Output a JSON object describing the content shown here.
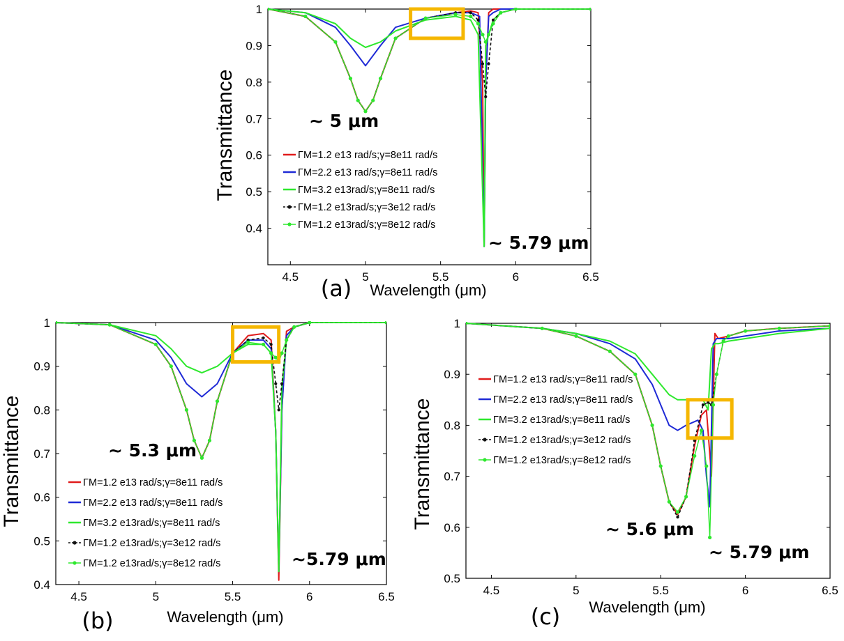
{
  "chart_data": [
    {
      "panel_label": "(a)",
      "type": "line",
      "xlabel": "Wavelength (μm)",
      "ylabel": "Transmittance",
      "xlim": [
        4.35,
        6.5
      ],
      "ylim": [
        0.3,
        1.0
      ],
      "xticks": [
        "4.5",
        "5",
        "5.5",
        "6",
        "6.5"
      ],
      "yticks": [
        "0.4",
        "0.5",
        "0.6",
        "0.7",
        "0.8",
        "0.9",
        "1"
      ],
      "annotations": [
        "~ 5 μm",
        "~ 5.79 μm"
      ],
      "highlight": {
        "x": [
          5.3,
          5.65
        ],
        "y": [
          0.92,
          1.0
        ],
        "color": "#f5b700"
      },
      "legend_position": "center-left",
      "series": [
        {
          "name": "ΓM=1.2 e13 rad/s;γ=8e11 rad/s",
          "color": "#e01b1b",
          "style": "solid",
          "x": [
            4.35,
            4.6,
            4.8,
            4.9,
            4.95,
            5.0,
            5.05,
            5.1,
            5.2,
            5.4,
            5.6,
            5.7,
            5.75,
            5.78,
            5.79,
            5.8,
            5.82,
            5.85,
            5.9,
            6.0,
            6.5
          ],
          "y": [
            1.0,
            0.98,
            0.91,
            0.81,
            0.75,
            0.72,
            0.75,
            0.81,
            0.92,
            0.975,
            0.99,
            0.995,
            0.99,
            0.8,
            0.35,
            0.8,
            0.99,
            1.0,
            1.0,
            1.0,
            1.0
          ]
        },
        {
          "name": "ΓM=2.2 e13 rad/s;γ=8e11 rad/s",
          "color": "#1f2ad6",
          "style": "solid",
          "x": [
            4.35,
            4.6,
            4.8,
            4.9,
            5.0,
            5.1,
            5.2,
            5.4,
            5.6,
            5.7,
            5.76,
            5.79,
            5.8,
            5.82,
            5.85,
            5.9,
            6.0,
            6.5
          ],
          "y": [
            1.0,
            0.99,
            0.95,
            0.9,
            0.845,
            0.9,
            0.95,
            0.975,
            0.99,
            0.99,
            0.98,
            0.35,
            0.8,
            0.98,
            0.99,
            1.0,
            1.0,
            1.0
          ]
        },
        {
          "name": "ΓM=3.2 e13rad/s;γ=8e11 rad/s",
          "color": "#2ee82e",
          "style": "solid",
          "x": [
            4.35,
            4.6,
            4.8,
            4.9,
            5.0,
            5.1,
            5.2,
            5.4,
            5.6,
            5.7,
            5.75,
            5.79,
            5.8,
            5.82,
            5.85,
            5.9,
            6.0,
            6.5
          ],
          "y": [
            1.0,
            0.99,
            0.96,
            0.92,
            0.895,
            0.91,
            0.94,
            0.97,
            0.98,
            0.97,
            0.93,
            0.35,
            0.9,
            0.93,
            0.97,
            0.99,
            1.0,
            1.0
          ]
        },
        {
          "name": "ΓM=1.2 e13rad/s;γ=3e12 rad/s",
          "color": "#111111",
          "style": "dashed-marker",
          "x": [
            4.35,
            4.6,
            4.8,
            4.9,
            4.95,
            5.0,
            5.05,
            5.1,
            5.2,
            5.4,
            5.6,
            5.7,
            5.75,
            5.78,
            5.8,
            5.82,
            5.85,
            5.9,
            6.0,
            6.5
          ],
          "y": [
            1.0,
            0.98,
            0.91,
            0.81,
            0.75,
            0.72,
            0.75,
            0.81,
            0.92,
            0.975,
            0.99,
            0.99,
            0.97,
            0.85,
            0.76,
            0.85,
            0.97,
            0.99,
            1.0,
            1.0
          ]
        },
        {
          "name": "ΓM=1.2 e13rad/s;γ=8e12 rad/s",
          "color": "#2ee82e",
          "style": "marker",
          "x": [
            4.35,
            4.6,
            4.8,
            4.9,
            4.95,
            5.0,
            5.05,
            5.1,
            5.2,
            5.4,
            5.6,
            5.7,
            5.75,
            5.78,
            5.8,
            5.82,
            5.85,
            5.9,
            6.0,
            6.5
          ],
          "y": [
            1.0,
            0.98,
            0.91,
            0.81,
            0.75,
            0.72,
            0.75,
            0.81,
            0.92,
            0.975,
            0.985,
            0.98,
            0.96,
            0.93,
            0.91,
            0.93,
            0.96,
            0.99,
            1.0,
            1.0
          ]
        }
      ]
    },
    {
      "panel_label": "(b)",
      "type": "line",
      "xlabel": "Wavelength (μm)",
      "ylabel": "Transmittance",
      "xlim": [
        4.35,
        6.5
      ],
      "ylim": [
        0.4,
        1.0
      ],
      "xticks": [
        "4.5",
        "5",
        "5.5",
        "6",
        "6.5"
      ],
      "yticks": [
        "0.4",
        "0.5",
        "0.6",
        "0.7",
        "0.8",
        "0.9",
        "1"
      ],
      "annotations": [
        "~ 5.3 μm",
        "~5.79 μm"
      ],
      "highlight": {
        "x": [
          5.5,
          5.8
        ],
        "y": [
          0.91,
          0.99
        ],
        "color": "#f5b700"
      },
      "legend_position": "bottom-left",
      "series": [
        {
          "name": "ΓM=1.2 e13 rad/s;γ=8e11 rad/s",
          "color": "#e01b1b",
          "style": "solid",
          "x": [
            4.35,
            4.7,
            5.0,
            5.1,
            5.2,
            5.25,
            5.3,
            5.35,
            5.4,
            5.5,
            5.6,
            5.7,
            5.75,
            5.78,
            5.8,
            5.82,
            5.85,
            5.9,
            6.0,
            6.5
          ],
          "y": [
            1.0,
            0.995,
            0.95,
            0.9,
            0.8,
            0.73,
            0.69,
            0.73,
            0.82,
            0.93,
            0.97,
            0.975,
            0.96,
            0.75,
            0.41,
            0.8,
            0.98,
            0.99,
            1.0,
            1.0
          ]
        },
        {
          "name": "ΓM=2.2 e13 rad/s;γ=8e11 rad/s",
          "color": "#1f2ad6",
          "style": "solid",
          "x": [
            4.35,
            4.7,
            5.0,
            5.1,
            5.2,
            5.3,
            5.4,
            5.5,
            5.6,
            5.7,
            5.75,
            5.78,
            5.8,
            5.82,
            5.85,
            5.9,
            6.0,
            6.5
          ],
          "y": [
            1.0,
            0.995,
            0.96,
            0.92,
            0.86,
            0.83,
            0.86,
            0.93,
            0.96,
            0.96,
            0.94,
            0.75,
            0.43,
            0.8,
            0.97,
            0.99,
            1.0,
            1.0
          ]
        },
        {
          "name": "ΓM=3.2 e13rad/s;γ=8e11 rad/s",
          "color": "#2ee82e",
          "style": "solid",
          "x": [
            4.35,
            4.7,
            5.0,
            5.1,
            5.2,
            5.3,
            5.4,
            5.5,
            5.6,
            5.7,
            5.75,
            5.78,
            5.8,
            5.82,
            5.85,
            5.9,
            6.0,
            6.5
          ],
          "y": [
            1.0,
            0.995,
            0.97,
            0.94,
            0.9,
            0.885,
            0.9,
            0.93,
            0.95,
            0.95,
            0.93,
            0.75,
            0.43,
            0.85,
            0.96,
            0.99,
            1.0,
            1.0
          ]
        },
        {
          "name": "ΓM=1.2 e13rad/s;γ=3e12 rad/s",
          "color": "#111111",
          "style": "dashed-marker",
          "x": [
            4.35,
            4.7,
            5.0,
            5.1,
            5.2,
            5.25,
            5.3,
            5.35,
            5.4,
            5.5,
            5.6,
            5.7,
            5.75,
            5.78,
            5.8,
            5.82,
            5.85,
            5.9,
            6.0,
            6.5
          ],
          "y": [
            1.0,
            0.995,
            0.95,
            0.9,
            0.8,
            0.73,
            0.69,
            0.73,
            0.82,
            0.93,
            0.96,
            0.965,
            0.95,
            0.86,
            0.8,
            0.86,
            0.96,
            0.99,
            1.0,
            1.0
          ]
        },
        {
          "name": "ΓM=1.2 e13rad/s;γ=8e12 rad/s",
          "color": "#2ee82e",
          "style": "marker",
          "x": [
            4.35,
            4.7,
            5.0,
            5.1,
            5.2,
            5.25,
            5.3,
            5.35,
            5.4,
            5.5,
            5.6,
            5.7,
            5.75,
            5.78,
            5.8,
            5.82,
            5.85,
            5.9,
            6.0,
            6.5
          ],
          "y": [
            1.0,
            0.995,
            0.95,
            0.9,
            0.8,
            0.73,
            0.69,
            0.73,
            0.82,
            0.93,
            0.955,
            0.95,
            0.93,
            0.92,
            0.91,
            0.93,
            0.96,
            0.99,
            1.0,
            1.0
          ]
        }
      ]
    },
    {
      "panel_label": "(c)",
      "type": "line",
      "xlabel": "Wavelength (μm)",
      "ylabel": "Transmittance",
      "xlim": [
        4.35,
        6.5
      ],
      "ylim": [
        0.5,
        1.0
      ],
      "xticks": [
        "4.5",
        "5",
        "5.5",
        "6",
        "6.5"
      ],
      "yticks": [
        "0.5",
        "0.6",
        "0.7",
        "0.8",
        "0.9",
        "1"
      ],
      "annotations": [
        "~ 5.6 μm",
        "~ 5.79 μm"
      ],
      "highlight": {
        "x": [
          5.66,
          5.92
        ],
        "y": [
          0.775,
          0.85
        ],
        "color": "#f5b700"
      },
      "legend_position": "top-left",
      "series": [
        {
          "name": "ΓM=1.2 e13 rad/s;γ=8e11 rad/s",
          "color": "#e01b1b",
          "style": "solid",
          "x": [
            4.35,
            4.8,
            5.0,
            5.2,
            5.35,
            5.45,
            5.5,
            5.55,
            5.6,
            5.65,
            5.7,
            5.74,
            5.77,
            5.8,
            5.82,
            5.84,
            5.9,
            6.0,
            6.2,
            6.5
          ],
          "y": [
            1.0,
            0.99,
            0.975,
            0.945,
            0.9,
            0.8,
            0.72,
            0.65,
            0.625,
            0.66,
            0.76,
            0.82,
            0.83,
            0.7,
            0.98,
            0.97,
            0.975,
            0.985,
            0.99,
            0.995
          ]
        },
        {
          "name": "ΓM=2.2 e13 rad/s;γ=8e11 rad/s",
          "color": "#1f2ad6",
          "style": "solid",
          "x": [
            4.35,
            4.8,
            5.0,
            5.2,
            5.35,
            5.45,
            5.5,
            5.55,
            5.6,
            5.65,
            5.72,
            5.75,
            5.77,
            5.79,
            5.81,
            5.83,
            5.9,
            6.0,
            6.2,
            6.5
          ],
          "y": [
            1.0,
            0.99,
            0.98,
            0.96,
            0.93,
            0.88,
            0.84,
            0.8,
            0.79,
            0.8,
            0.81,
            0.79,
            0.7,
            0.64,
            0.96,
            0.97,
            0.97,
            0.975,
            0.985,
            0.99
          ]
        },
        {
          "name": "ΓM=3.2 e13rad/s;γ=8e11 rad/s",
          "color": "#2ee82e",
          "style": "solid",
          "x": [
            4.35,
            4.8,
            5.0,
            5.2,
            5.35,
            5.45,
            5.55,
            5.6,
            5.65,
            5.7,
            5.75,
            5.78,
            5.8,
            5.82,
            5.84,
            5.9,
            6.0,
            6.2,
            6.5
          ],
          "y": [
            1.0,
            0.99,
            0.98,
            0.965,
            0.94,
            0.9,
            0.86,
            0.85,
            0.85,
            0.85,
            0.85,
            0.83,
            0.95,
            0.96,
            0.96,
            0.965,
            0.97,
            0.98,
            0.99
          ]
        },
        {
          "name": "ΓM=1.2 e13rad/s;γ=3e12 rad/s",
          "color": "#111111",
          "style": "dashed-marker",
          "x": [
            4.35,
            4.8,
            5.0,
            5.2,
            5.35,
            5.45,
            5.5,
            5.55,
            5.6,
            5.65,
            5.7,
            5.75,
            5.78,
            5.8,
            5.83,
            5.87,
            5.9,
            6.0,
            6.2,
            6.5
          ],
          "y": [
            1.0,
            0.99,
            0.975,
            0.945,
            0.9,
            0.8,
            0.72,
            0.65,
            0.62,
            0.66,
            0.77,
            0.84,
            0.845,
            0.84,
            0.9,
            0.965,
            0.975,
            0.985,
            0.99,
            0.995
          ]
        },
        {
          "name": "ΓM=1.2 e13rad/s;γ=8e12 rad/s",
          "color": "#2ee82e",
          "style": "marker",
          "x": [
            4.35,
            4.8,
            5.0,
            5.2,
            5.35,
            5.45,
            5.5,
            5.55,
            5.6,
            5.65,
            5.7,
            5.74,
            5.77,
            5.79,
            5.81,
            5.83,
            5.87,
            5.9,
            6.0,
            6.2,
            6.5
          ],
          "y": [
            1.0,
            0.99,
            0.975,
            0.945,
            0.9,
            0.8,
            0.72,
            0.65,
            0.63,
            0.66,
            0.74,
            0.79,
            0.72,
            0.58,
            0.84,
            0.9,
            0.965,
            0.975,
            0.985,
            0.99,
            0.995
          ]
        }
      ]
    }
  ]
}
